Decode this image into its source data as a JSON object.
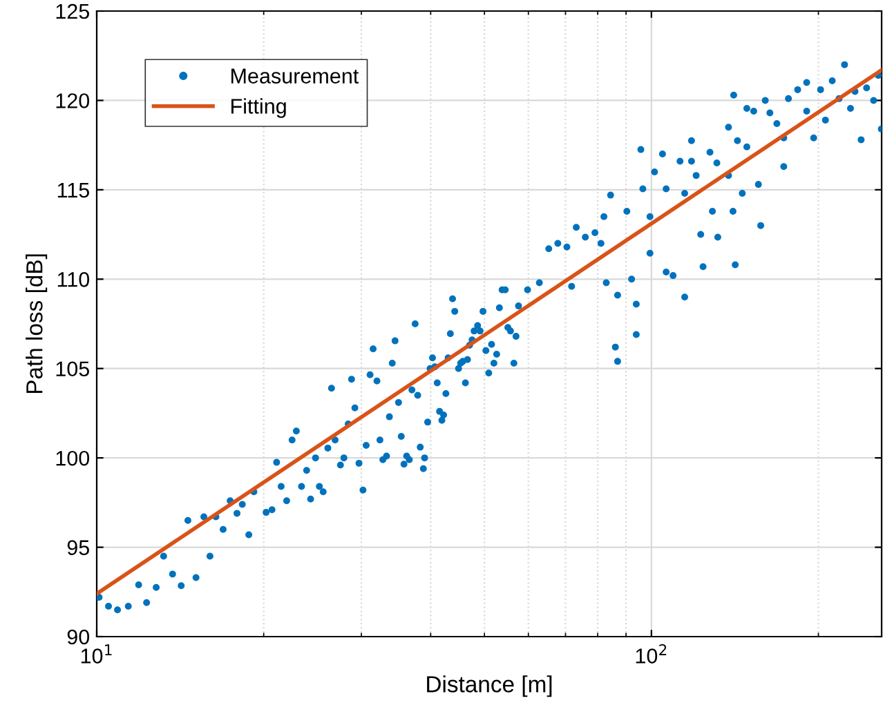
{
  "chart_data": {
    "type": "scatter",
    "xlabel": "Distance [m]",
    "ylabel": "Path loss [dB]",
    "log": "x",
    "xlim": [
      10,
      260
    ],
    "xticks": [
      {
        "value": 10,
        "label": "10$^{1}$"
      },
      {
        "value": 100,
        "label": "10$^{2}$"
      }
    ],
    "ylim": [
      90,
      125
    ],
    "yticks": [
      90,
      95,
      100,
      105,
      110,
      115,
      120,
      125
    ],
    "grid": true,
    "legend": "top left",
    "series": [
      {
        "name": "Measurement",
        "marker": "circle",
        "color": "#0072bd",
        "x": [
          10.1,
          10.5,
          10.9,
          11.4,
          11.9,
          12.3,
          12.8,
          13.2,
          13.7,
          14.2,
          14.6,
          15.1,
          15.6,
          16.0,
          16.4,
          16.9,
          17.4,
          17.9,
          18.3,
          18.8,
          19.2,
          20.2,
          20.7,
          21.1,
          21.5,
          22.0,
          22.5,
          22.9,
          23.4,
          23.9,
          24.3,
          24.8,
          25.2,
          25.6,
          26.1,
          26.5,
          26.9,
          27.5,
          27.9,
          28.4,
          28.8,
          29.2,
          29.7,
          30.2,
          30.6,
          31.1,
          31.5,
          32.0,
          32.4,
          32.8,
          33.3,
          33.7,
          34.1,
          34.5,
          35.0,
          35.4,
          35.8,
          36.2,
          36.6,
          37.0,
          37.5,
          37.9,
          38.3,
          38.8,
          39.0,
          39.5,
          39.9,
          40.3,
          40.7,
          41.1,
          41.5,
          41.9,
          42.2,
          42.6,
          43.0,
          43.4,
          43.8,
          44.2,
          44.9,
          45.3,
          45.7,
          46.2,
          46.6,
          47.0,
          47.5,
          47.9,
          48.6,
          49.1,
          49.7,
          50.3,
          50.9,
          51.5,
          52.0,
          52.6,
          53.2,
          53.8,
          54.5,
          55.1,
          55.7,
          56.5,
          57.0,
          57.6,
          59.8,
          62.8,
          65.3,
          67.8,
          70.4,
          71.8,
          73.2,
          76.0,
          79.1,
          82.1,
          81.1,
          82.9,
          86.9,
          86.1,
          86.9,
          84.4,
          90.3,
          92.1,
          93.9,
          93.9,
          95.7,
          96.5,
          99.4,
          99.4,
          101.3,
          104.7,
          106.3,
          106.3,
          109.4,
          112.6,
          114.8,
          114.8,
          118.1,
          118.1,
          120.4,
          122.7,
          123.9,
          127.5,
          128.8,
          131.2,
          131.7,
          137.7,
          137.7,
          140.3,
          141.6,
          142.9,
          140.7,
          145.8,
          148.6,
          148.6,
          152.9,
          155.9,
          157.4,
          160.4,
          163.5,
          168.3,
          173.2,
          173.2,
          176.6,
          183.5,
          190.5,
          190.5,
          196.1,
          201.8,
          205.9,
          211.8,
          217.9,
          222.9,
          228.5,
          232.8,
          238.8,
          244.3,
          251.5,
          256.4,
          259.7
        ],
        "values": [
          92.2,
          91.7,
          91.5,
          91.7,
          92.9,
          91.9,
          92.75,
          94.5,
          93.5,
          92.85,
          96.5,
          93.3,
          96.7,
          94.5,
          96.7,
          96.0,
          97.6,
          96.9,
          97.4,
          95.7,
          98.1,
          96.95,
          97.1,
          99.75,
          98.4,
          97.6,
          101.0,
          101.5,
          98.4,
          99.3,
          97.7,
          100.0,
          98.4,
          98.1,
          100.55,
          103.9,
          101.0,
          99.6,
          100.0,
          101.9,
          104.4,
          102.8,
          99.7,
          98.2,
          100.7,
          104.65,
          106.1,
          104.3,
          101.0,
          99.9,
          100.1,
          102.3,
          105.3,
          106.55,
          103.1,
          101.2,
          99.65,
          100.1,
          99.9,
          103.8,
          107.5,
          103.5,
          100.6,
          99.4,
          100.0,
          102.0,
          105.0,
          105.6,
          105.1,
          104.2,
          102.6,
          102.1,
          102.4,
          103.6,
          105.6,
          106.95,
          108.9,
          108.2,
          105.0,
          105.3,
          105.4,
          104.2,
          105.5,
          106.3,
          106.6,
          107.1,
          107.4,
          107.1,
          108.2,
          106.0,
          104.75,
          106.35,
          105.3,
          105.8,
          108.4,
          109.4,
          109.4,
          107.3,
          107.1,
          105.3,
          106.8,
          108.5,
          109.4,
          109.8,
          111.7,
          112.0,
          111.8,
          109.6,
          112.9,
          112.35,
          112.6,
          113.5,
          112.0,
          109.8,
          109.1,
          106.2,
          105.4,
          114.7,
          113.8,
          110.0,
          108.6,
          106.9,
          117.25,
          115.05,
          113.5,
          111.45,
          116.0,
          117.0,
          115.05,
          110.4,
          110.2,
          116.6,
          109.0,
          114.8,
          117.75,
          116.6,
          115.8,
          112.5,
          110.7,
          117.1,
          113.8,
          116.5,
          112.35,
          118.5,
          115.8,
          113.8,
          110.8,
          117.75,
          120.3,
          114.8,
          119.55,
          117.4,
          119.4,
          115.3,
          113.0,
          120.0,
          119.3,
          118.7,
          116.3,
          117.9,
          120.1,
          120.6,
          121.0,
          119.4,
          117.9,
          120.6,
          118.9,
          121.1,
          120.1,
          122.0,
          119.55,
          120.5,
          117.8,
          120.7,
          120.0,
          121.4,
          118.4
        ]
      },
      {
        "name": "Fitting",
        "type": "line",
        "line_style": "solid",
        "color": "#d95319",
        "x": [
          10,
          260
        ],
        "values": [
          92.4,
          121.7
        ]
      }
    ]
  }
}
